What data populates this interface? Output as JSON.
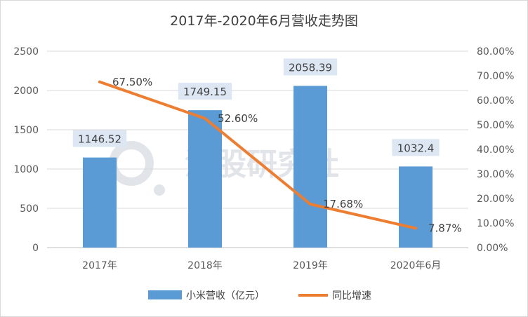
{
  "chart_data": {
    "type": "bar",
    "title": "2017年-2020年6月营收走势图",
    "categories": [
      "2017年",
      "2018年",
      "2019年",
      "2020年6月"
    ],
    "series": [
      {
        "name": "小米营收（亿元）",
        "type": "bar",
        "axis": "left",
        "values": [
          1146.52,
          1749.15,
          2058.39,
          1032.4
        ],
        "labels": [
          "1146.52",
          "1749.15",
          "2058.39",
          "1032.4"
        ],
        "color": "#5b9bd5"
      },
      {
        "name": "同比增速",
        "type": "line",
        "axis": "right",
        "values": [
          67.5,
          52.6,
          17.68,
          7.87
        ],
        "labels": [
          "67.50%",
          "52.60%",
          "17.68%",
          "7.87%"
        ],
        "color": "#ed7d31"
      }
    ],
    "y_left": {
      "ylim": [
        0,
        2500
      ],
      "ticks": [
        0,
        500,
        1000,
        1500,
        2000,
        2500
      ],
      "tick_labels": [
        "0",
        "500",
        "1000",
        "1500",
        "2000",
        "2500"
      ]
    },
    "y_right": {
      "ylim": [
        0,
        80
      ],
      "ticks": [
        0,
        10,
        20,
        30,
        40,
        50,
        60,
        70,
        80
      ],
      "tick_labels": [
        "0.00%",
        "10.00%",
        "20.00%",
        "30.00%",
        "40.00%",
        "50.00%",
        "60.00%",
        "70.00%",
        "80.00%"
      ]
    },
    "grid": true,
    "legend_position": "bottom",
    "watermark": "港股研究社"
  }
}
